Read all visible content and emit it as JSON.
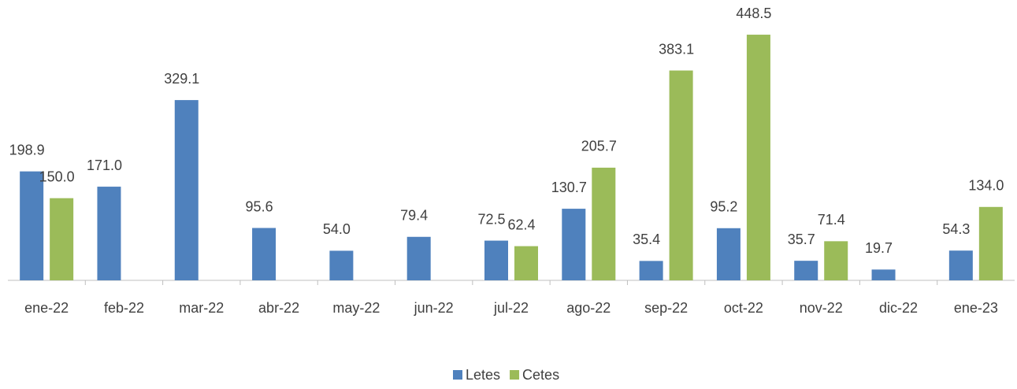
{
  "chart_data": {
    "type": "bar",
    "categories": [
      "ene-22",
      "feb-22",
      "mar-22",
      "abr-22",
      "may-22",
      "jun-22",
      "jul-22",
      "ago-22",
      "sep-22",
      "oct-22",
      "nov-22",
      "dic-22",
      "ene-23"
    ],
    "series": [
      {
        "name": "Letes",
        "color": "#4f81bd",
        "values": [
          198.9,
          171,
          329.1,
          95.6,
          54,
          79.4,
          72.5,
          130.7,
          35.4,
          95.2,
          35.7,
          19.7,
          54.3
        ],
        "value_labels": [
          "198.9",
          "171.0",
          "329.1",
          "95.6",
          "54.0",
          "79.4",
          "72.5",
          "130.7",
          "35.4",
          "95.2",
          "35.7",
          "19.7",
          "54.3"
        ]
      },
      {
        "name": "Cetes",
        "color": "#9bbb59",
        "values": [
          150,
          null,
          null,
          null,
          null,
          null,
          62.4,
          205.7,
          383.1,
          448.5,
          71.4,
          null,
          134
        ],
        "value_labels": [
          "150.0",
          null,
          null,
          null,
          null,
          null,
          "62.4",
          "205.7",
          "383.1",
          "448.5",
          "71.4",
          null,
          "134.0"
        ]
      }
    ],
    "ylim": [
      0,
      450
    ],
    "legend": "bottom"
  }
}
